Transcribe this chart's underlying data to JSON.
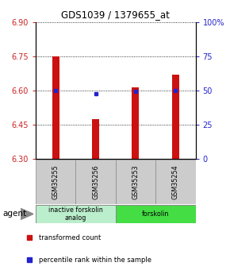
{
  "title": "GDS1039 / 1379655_at",
  "samples": [
    "GSM35255",
    "GSM35256",
    "GSM35253",
    "GSM35254"
  ],
  "bar_tops": [
    6.75,
    6.475,
    6.615,
    6.67
  ],
  "bar_bottom": 6.3,
  "percentile_values": [
    6.6,
    6.585,
    6.595,
    6.6
  ],
  "left_ylim": [
    6.3,
    6.9
  ],
  "left_yticks": [
    6.3,
    6.45,
    6.6,
    6.75,
    6.9
  ],
  "right_yticks": [
    0,
    25,
    50,
    75,
    100
  ],
  "right_ylim": [
    0,
    100
  ],
  "bar_color": "#cc1111",
  "percentile_color": "#2222cc",
  "agent_label": "agent",
  "groups": [
    {
      "label": "inactive forskolin\nanalog",
      "indices": [
        0,
        1
      ],
      "color": "#bbeecc"
    },
    {
      "label": "forskolin",
      "indices": [
        2,
        3
      ],
      "color": "#44dd44"
    }
  ],
  "legend_items": [
    {
      "label": "transformed count",
      "color": "#cc1111"
    },
    {
      "label": "percentile rank within the sample",
      "color": "#2222cc"
    }
  ],
  "sample_box_color": "#cccccc",
  "tick_color_left": "#cc2222",
  "tick_color_right": "#2222cc",
  "bg_color": "#ffffff"
}
